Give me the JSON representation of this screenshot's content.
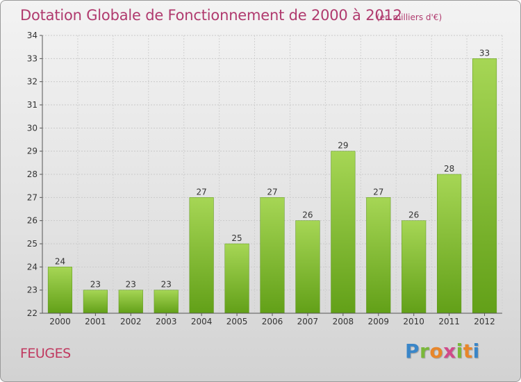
{
  "header": {
    "title": "Dotation Globale de Fonctionnement de 2000 à 2012",
    "unit": "(en milliers d'€)"
  },
  "footer": {
    "commune": "FEUGES",
    "brand": "Proxiti"
  },
  "colors": {
    "title": "#b03a6e",
    "bar_light": "#a6d655",
    "bar_dark": "#62a018",
    "brand_blue": "#3a86c8",
    "brand_green": "#7ab83a",
    "brand_orange": "#e8862a",
    "brand_pink": "#d04a8a"
  },
  "chart_data": {
    "type": "bar",
    "title": "Dotation Globale de Fonctionnement de 2000 à 2012",
    "subtitle": "(en milliers d'€)",
    "categories": [
      "2000",
      "2001",
      "2002",
      "2003",
      "2004",
      "2005",
      "2006",
      "2007",
      "2008",
      "2009",
      "2010",
      "2011",
      "2012"
    ],
    "values": [
      24,
      23,
      23,
      23,
      27,
      25,
      27,
      26,
      29,
      27,
      26,
      28,
      33
    ],
    "xlabel": "",
    "ylabel": "",
    "ylim": [
      22,
      34
    ],
    "yticks": [
      22,
      23,
      24,
      25,
      26,
      27,
      28,
      29,
      30,
      31,
      32,
      33,
      34
    ],
    "grid": true,
    "legend": "none",
    "data_labels": true
  }
}
